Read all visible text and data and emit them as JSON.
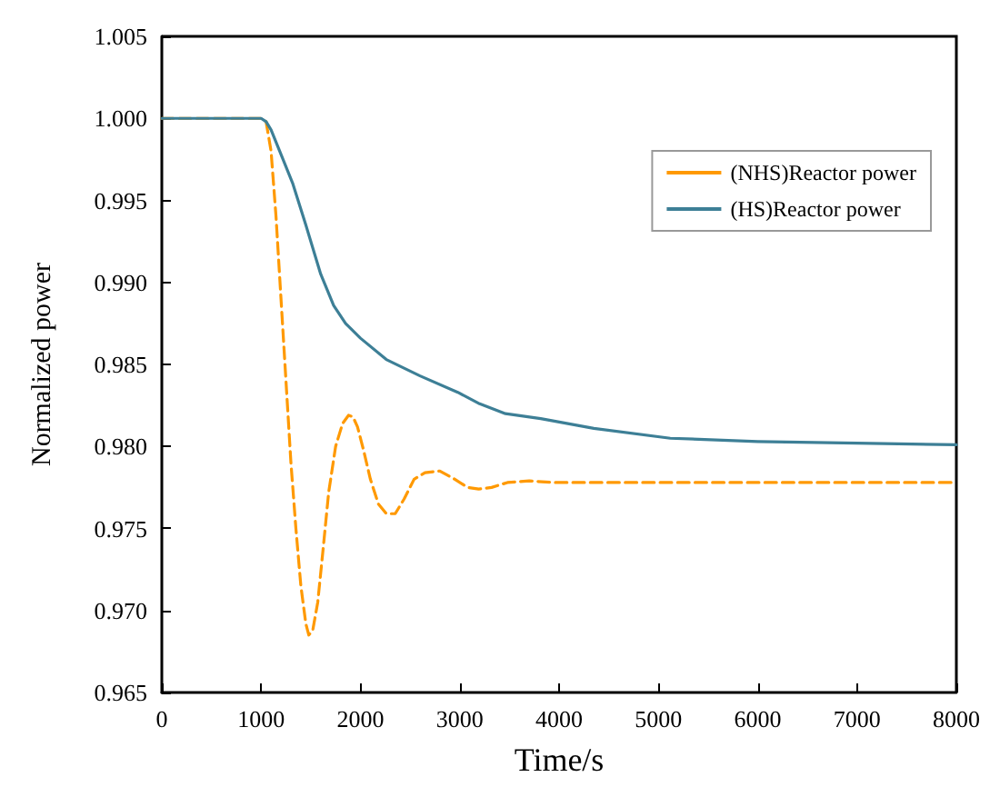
{
  "chart_data": {
    "type": "line",
    "xlabel": "Time/s",
    "ylabel": "Normalized power",
    "xlim": [
      0,
      8000
    ],
    "xticks": [
      0,
      1000,
      2000,
      3000,
      4000,
      5000,
      6000,
      7000,
      8000
    ],
    "ylim": [
      0.965,
      1.005
    ],
    "yticks": [
      {
        "value": 0.965,
        "label": "0.965"
      },
      {
        "value": 0.97,
        "label": "0.970"
      },
      {
        "value": 0.975,
        "label": "0.975"
      },
      {
        "value": 0.98,
        "label": "0.980"
      },
      {
        "value": 0.985,
        "label": "0.985"
      },
      {
        "value": 0.99,
        "label": "0.990"
      },
      {
        "value": 0.995,
        "label": "0.995"
      },
      {
        "value": 1,
        "label": "1.000"
      },
      {
        "value": 1.005,
        "label": "1.005"
      }
    ],
    "grid": false,
    "legend": "top right",
    "marker": "none",
    "series": [
      {
        "name": "(NHS)Reactor power",
        "color": "#ff9900",
        "line_style": "dashed",
        "x": [
          0,
          1000,
          1050,
          1100,
          1150,
          1200,
          1250,
          1300,
          1350,
          1400,
          1450,
          1480,
          1520,
          1570,
          1620,
          1680,
          1750,
          1820,
          1880,
          1925,
          1970,
          2030,
          2100,
          2180,
          2260,
          2350,
          2440,
          2540,
          2650,
          2800,
          2950,
          3080,
          3190,
          3320,
          3480,
          3700,
          3950,
          4200,
          5000,
          6000,
          7000,
          8000
        ],
        "values": [
          1.0,
          1.0,
          0.9998,
          0.998,
          0.994,
          0.989,
          0.984,
          0.979,
          0.975,
          0.9715,
          0.9692,
          0.9685,
          0.9688,
          0.9705,
          0.9735,
          0.9772,
          0.98,
          0.9814,
          0.9819,
          0.9818,
          0.9812,
          0.9798,
          0.978,
          0.9765,
          0.9759,
          0.9759,
          0.9768,
          0.978,
          0.9784,
          0.9785,
          0.978,
          0.9775,
          0.9774,
          0.9775,
          0.9778,
          0.9779,
          0.9778,
          0.9778,
          0.9778,
          0.9778,
          0.9778,
          0.9778
        ]
      },
      {
        "name": "(HS)Reactor power",
        "color": "#3d7f96",
        "line_style": "solid",
        "x": [
          0,
          1000,
          1050,
          1100,
          1200,
          1320,
          1450,
          1600,
          1730,
          1850,
          2000,
          2260,
          2600,
          2980,
          3200,
          3460,
          3815,
          4350,
          5120,
          6000,
          7000,
          8000
        ],
        "values": [
          1.0,
          1.0,
          0.9998,
          0.9993,
          0.9978,
          0.996,
          0.9935,
          0.9905,
          0.9886,
          0.9875,
          0.9866,
          0.9853,
          0.9843,
          0.9833,
          0.9826,
          0.982,
          0.9817,
          0.9811,
          0.9805,
          0.9803,
          0.9802,
          0.9801
        ]
      }
    ]
  }
}
